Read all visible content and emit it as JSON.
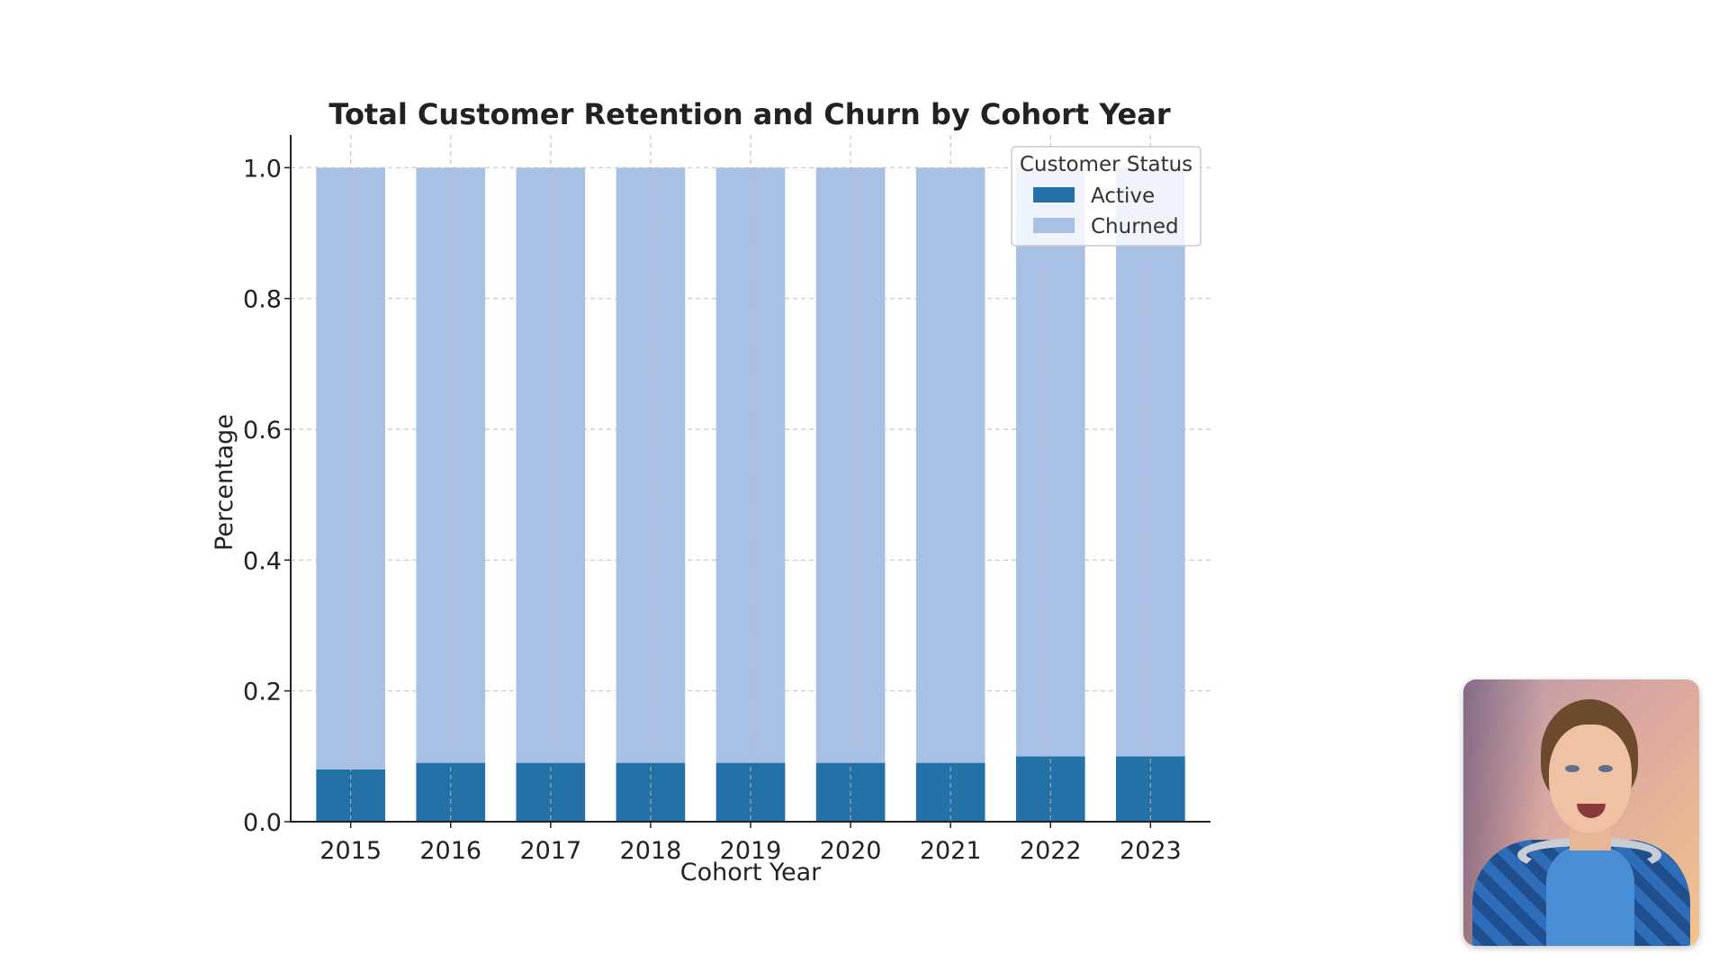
{
  "chart_data": {
    "type": "bar",
    "stacked": true,
    "title": "Total Customer Retention and Churn by Cohort Year",
    "xlabel": "Cohort Year",
    "ylabel": "Percentage",
    "categories": [
      "2015",
      "2016",
      "2017",
      "2018",
      "2019",
      "2020",
      "2021",
      "2022",
      "2023"
    ],
    "series": [
      {
        "name": "Active",
        "color": "#2471a8",
        "values": [
          0.08,
          0.09,
          0.09,
          0.09,
          0.09,
          0.09,
          0.09,
          0.1,
          0.1
        ]
      },
      {
        "name": "Churned",
        "color": "#a8c0e4",
        "values": [
          0.92,
          0.91,
          0.91,
          0.91,
          0.91,
          0.91,
          0.91,
          0.9,
          0.9
        ]
      }
    ],
    "ylim": [
      0,
      1.05
    ],
    "yticks": [
      "0.0",
      "0.2",
      "0.4",
      "0.6",
      "0.8",
      "1.0"
    ],
    "grid": true,
    "legend": {
      "title": "Customer Status",
      "placement": "top-right"
    }
  },
  "webcam": {
    "icon": "presenter-video-icon"
  }
}
